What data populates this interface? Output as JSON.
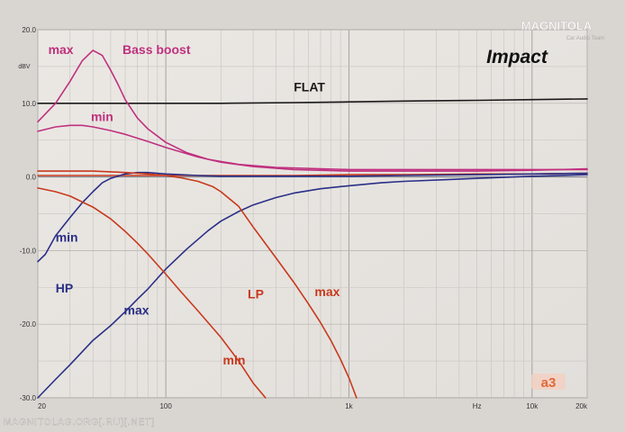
{
  "chart_data": {
    "type": "line",
    "title": "Impact",
    "ylabel": "dBV",
    "xlabel": "Hz",
    "x_scale": "log",
    "xlim": [
      20,
      20000
    ],
    "ylim": [
      -30,
      20
    ],
    "grid": true,
    "y_ticks": [
      20,
      10,
      0,
      -10,
      -20,
      -30
    ],
    "y_tick_labels": [
      "20.0",
      "10.0",
      "0.0",
      "-10.0",
      "-20.0",
      "-30.0"
    ],
    "x_tick_labels": [
      {
        "x": 20,
        "label": "20"
      },
      {
        "x": 100,
        "label": "100"
      },
      {
        "x": 1000,
        "label": "1k"
      },
      {
        "x": 5000,
        "label": "Hz"
      },
      {
        "x": 10000,
        "label": "10k"
      },
      {
        "x": 20000,
        "label": "20k"
      }
    ],
    "x_gridlines": [
      20,
      30,
      40,
      50,
      60,
      70,
      80,
      90,
      100,
      200,
      300,
      400,
      500,
      600,
      700,
      800,
      900,
      1000,
      2000,
      3000,
      4000,
      5000,
      6000,
      7000,
      8000,
      9000,
      10000,
      20000
    ],
    "y_gridlines": [
      20,
      15,
      10,
      5,
      0,
      -5,
      -10,
      -15,
      -20,
      -25,
      -30
    ],
    "annotations": [
      {
        "text": "Bass boost",
        "x": 58,
        "y": 16.7,
        "color": "#c0307e"
      },
      {
        "text": "max",
        "x": 22.8,
        "y": 16.7,
        "color": "#c0307e"
      },
      {
        "text": "min",
        "x": 39,
        "y": 7.6,
        "color": "#c0307e"
      },
      {
        "text": "FLAT",
        "x": 500,
        "y": 11.6,
        "color": "#1a1a1a"
      },
      {
        "text": "min",
        "x": 25,
        "y": -8.8,
        "color": "#2a2f86"
      },
      {
        "text": "HP",
        "x": 25,
        "y": -15.7,
        "color": "#2a2f86"
      },
      {
        "text": "max",
        "x": 59,
        "y": -18.7,
        "color": "#2a2f86"
      },
      {
        "text": "LP",
        "x": 280,
        "y": -16.5,
        "color": "#c8391c"
      },
      {
        "text": "max",
        "x": 650,
        "y": -16.2,
        "color": "#c8391c"
      },
      {
        "text": "min",
        "x": 205,
        "y": -25.5,
        "color": "#c8391c"
      }
    ],
    "series": [
      {
        "color": "#1a1a1a",
        "x": [
          20,
          50,
          100,
          200,
          500,
          1000,
          2000,
          5000,
          10000,
          20000
        ],
        "y": [
          10,
          10,
          10,
          10,
          10.1,
          10.2,
          10.3,
          10.4,
          10.5,
          10.6
        ]
      },
      {
        "color": "#c0307e",
        "x": [
          20,
          25,
          30,
          35,
          40,
          45,
          50,
          55,
          60,
          70,
          80,
          100,
          130,
          170,
          250,
          400,
          700,
          1000,
          2000,
          5000,
          10000,
          20000
        ],
        "y": [
          7.5,
          10,
          13,
          15.8,
          17.2,
          16.5,
          14.5,
          12.5,
          10.5,
          8,
          6.5,
          4.7,
          3.3,
          2.4,
          1.7,
          1.3,
          1.1,
          1,
          1,
          1,
          1,
          1
        ]
      },
      {
        "color": "#c0307e",
        "x": [
          20,
          25,
          30,
          35,
          40,
          50,
          60,
          80,
          100,
          150,
          200,
          300,
          500,
          1000,
          2000,
          5000,
          10000,
          20000
        ],
        "y": [
          6.2,
          6.8,
          7,
          7,
          6.8,
          6.3,
          5.8,
          4.8,
          4,
          2.7,
          2,
          1.4,
          1,
          0.8,
          0.8,
          0.8,
          0.9,
          1.1
        ]
      },
      {
        "color": "#c8391c",
        "x": [
          20,
          50,
          100,
          200,
          500,
          1000,
          2000,
          5000,
          10000,
          20000
        ],
        "y": [
          0.2,
          0.2,
          0.2,
          0.2,
          0.2,
          0.3,
          0.3,
          0.4,
          0.4,
          0.5
        ]
      },
      {
        "color": "#2a2f86",
        "x": [
          20,
          22,
          25,
          30,
          35,
          40,
          45,
          50,
          60,
          70,
          80,
          100,
          120,
          150,
          200,
          300,
          400,
          500,
          700,
          1000,
          2000,
          5000,
          10000,
          20000
        ],
        "y": [
          -11.5,
          -10.5,
          -8,
          -5.5,
          -3.5,
          -2,
          -0.8,
          -0.2,
          0.4,
          0.6,
          0.6,
          0.4,
          0.3,
          0.2,
          0.1,
          0.1,
          0.1,
          0.1,
          0.1,
          0.1,
          0.2,
          0.3,
          0.4,
          0.5
        ]
      },
      {
        "color": "#2a2f86",
        "x": [
          20,
          25,
          30,
          40,
          50,
          60,
          70,
          80,
          100,
          130,
          170,
          200,
          250,
          300,
          400,
          500,
          700,
          1000,
          1500,
          2000,
          5000,
          10000,
          20000
        ],
        "y": [
          -30,
          -27.5,
          -25.5,
          -22.2,
          -20.2,
          -18.3,
          -16.6,
          -15.2,
          -12.5,
          -9.8,
          -7.3,
          -6,
          -4.7,
          -3.8,
          -2.8,
          -2.2,
          -1.6,
          -1.2,
          -0.8,
          -0.6,
          -0.2,
          0.1,
          0.3
        ]
      },
      {
        "color": "#c8391c",
        "x": [
          20,
          30,
          40,
          50,
          60,
          70,
          80,
          100,
          120,
          150,
          180,
          200,
          250,
          300,
          400,
          500,
          600,
          700,
          800,
          900,
          1000,
          1100
        ],
        "y": [
          0.8,
          0.8,
          0.8,
          0.7,
          0.6,
          0.5,
          0.4,
          0.2,
          -0.1,
          -0.6,
          -1.3,
          -2,
          -4,
          -6.8,
          -11,
          -14.3,
          -17.2,
          -19.8,
          -22.3,
          -24.8,
          -27.3,
          -30
        ]
      },
      {
        "color": "#c8391c",
        "x": [
          20,
          25,
          30,
          40,
          50,
          60,
          70,
          80,
          100,
          120,
          150,
          200,
          250,
          300,
          350
        ],
        "y": [
          -1.5,
          -2,
          -2.6,
          -4.1,
          -5.7,
          -7.4,
          -9,
          -10.5,
          -13.2,
          -15.5,
          -18.2,
          -21.8,
          -25,
          -28,
          -30
        ]
      }
    ]
  },
  "watermark": {
    "brand": "MAGNITOLA",
    "sub": "Car Audio Team",
    "footer": "MAGNITOLAG.ORG[.RU][.NET]",
    "stamp": "a3"
  }
}
